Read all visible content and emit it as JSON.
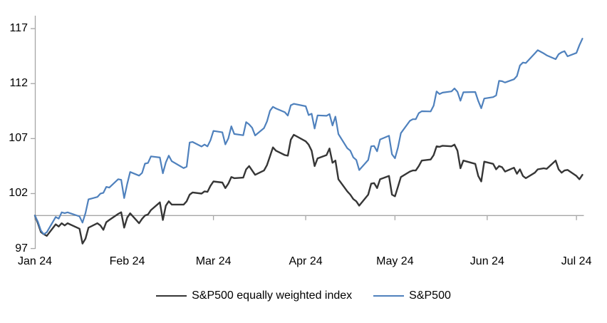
{
  "chart_data": {
    "type": "line",
    "title": "",
    "x_axis": {
      "tick_labels": [
        "Jan 24",
        "Feb 24",
        "Mar 24",
        "Apr 24",
        "May 24",
        "Jun 24",
        "Jul 24"
      ],
      "tick_doy": [
        1,
        32,
        61,
        92,
        122,
        153,
        183
      ]
    },
    "y_axis": {
      "ticks": [
        97,
        102,
        107,
        112,
        117
      ],
      "min_shown": 97,
      "max_shown": 117
    },
    "baseline_value": 100,
    "grid": false,
    "legend_position": "bottom-center",
    "colors": {
      "sp500": "#4f81bd",
      "equal_weight": "#363636",
      "axis": "#a6a6a6",
      "baseline": "#a6a6a6",
      "text": "#000000"
    },
    "doy": [
      1,
      2,
      3,
      4,
      5,
      8,
      9,
      10,
      11,
      12,
      16,
      17,
      18,
      19,
      22,
      23,
      24,
      25,
      26,
      29,
      30,
      31,
      32,
      33,
      36,
      37,
      38,
      39,
      40,
      43,
      44,
      45,
      46,
      47,
      51,
      52,
      53,
      54,
      57,
      58,
      59,
      60,
      61,
      64,
      65,
      66,
      67,
      68,
      71,
      72,
      73,
      74,
      75,
      78,
      79,
      80,
      81,
      82,
      85,
      86,
      87,
      88,
      92,
      93,
      94,
      95,
      96,
      99,
      100,
      101,
      102,
      103,
      106,
      107,
      108,
      109,
      110,
      113,
      114,
      115,
      116,
      117,
      120,
      121,
      122,
      123,
      124,
      127,
      128,
      129,
      130,
      131,
      134,
      135,
      136,
      137,
      138,
      141,
      142,
      143,
      144,
      145,
      149,
      150,
      151,
      152,
      155,
      156,
      157,
      158,
      159,
      162,
      163,
      164,
      165,
      166,
      169,
      170,
      172,
      173,
      176,
      177,
      178,
      179,
      180,
      183,
      184,
      185
    ],
    "series": [
      {
        "name": "S&P500 equally weighted index",
        "color_key": "equal_weight",
        "values": [
          100.0,
          99.3,
          98.5,
          98.3,
          98.15,
          99.2,
          99.0,
          99.3,
          99.1,
          99.3,
          98.8,
          97.45,
          97.9,
          98.9,
          99.3,
          99.1,
          98.7,
          99.4,
          99.6,
          100.15,
          100.3,
          98.9,
          99.8,
          100.2,
          99.3,
          99.7,
          100.0,
          100.1,
          100.5,
          101.2,
          99.6,
          100.9,
          101.3,
          101.0,
          101.0,
          101.3,
          101.9,
          102.1,
          102.0,
          102.2,
          102.15,
          102.7,
          103.1,
          103.0,
          102.5,
          102.9,
          103.5,
          103.4,
          103.45,
          104.2,
          104.5,
          104.1,
          103.7,
          104.1,
          104.6,
          105.4,
          106.2,
          105.9,
          105.5,
          105.45,
          106.9,
          107.35,
          106.75,
          106.45,
          105.9,
          104.5,
          105.2,
          105.5,
          106.1,
          104.8,
          105.0,
          103.3,
          102.2,
          101.9,
          101.5,
          101.3,
          100.9,
          101.9,
          102.9,
          102.95,
          102.5,
          103.3,
          103.6,
          101.9,
          101.75,
          102.6,
          103.5,
          104.0,
          104.1,
          104.1,
          104.5,
          105.0,
          105.1,
          105.5,
          106.3,
          106.25,
          106.35,
          106.3,
          106.45,
          105.9,
          104.3,
          105.0,
          104.7,
          103.6,
          103.1,
          104.9,
          104.7,
          104.2,
          104.5,
          104.4,
          104.0,
          104.35,
          103.8,
          104.2,
          103.6,
          103.4,
          103.9,
          104.2,
          104.3,
          104.25,
          105.0,
          104.2,
          103.9,
          104.1,
          104.15,
          103.6,
          103.3,
          103.7
        ]
      },
      {
        "name": "S&P500",
        "color_key": "sp500",
        "values": [
          100.0,
          99.43,
          98.64,
          98.3,
          98.48,
          99.87,
          99.72,
          100.29,
          100.22,
          100.29,
          99.92,
          99.36,
          100.23,
          101.47,
          101.69,
          101.99,
          102.07,
          102.61,
          102.54,
          103.31,
          103.25,
          101.59,
          102.86,
          103.96,
          103.63,
          103.87,
          104.72,
          104.78,
          105.38,
          105.28,
          103.84,
          104.84,
          105.45,
          104.94,
          104.31,
          104.44,
          106.65,
          106.69,
          106.28,
          106.46,
          106.29,
          106.84,
          107.7,
          107.57,
          106.47,
          107.02,
          108.12,
          107.42,
          107.3,
          108.5,
          108.29,
          107.98,
          107.28,
          107.96,
          108.57,
          109.53,
          109.89,
          109.74,
          109.4,
          109.09,
          110.03,
          110.16,
          109.94,
          109.14,
          109.26,
          107.91,
          109.11,
          109.07,
          109.23,
          108.19,
          109.0,
          107.41,
          106.12,
          105.9,
          105.29,
          105.06,
          104.14,
          105.05,
          106.3,
          106.33,
          105.84,
          106.92,
          107.26,
          105.57,
          105.21,
          106.17,
          107.5,
          108.61,
          108.76,
          108.76,
          109.31,
          109.49,
          109.47,
          110.0,
          111.29,
          111.05,
          111.18,
          111.29,
          111.56,
          111.26,
          110.44,
          111.21,
          111.24,
          110.42,
          109.76,
          110.64,
          110.77,
          110.93,
          112.25,
          112.22,
          112.1,
          112.39,
          112.69,
          113.65,
          113.92,
          113.87,
          114.75,
          115.04,
          114.75,
          114.57,
          114.22,
          114.67,
          114.85,
          114.95,
          114.48,
          114.79,
          115.5,
          116.09
        ]
      }
    ]
  }
}
